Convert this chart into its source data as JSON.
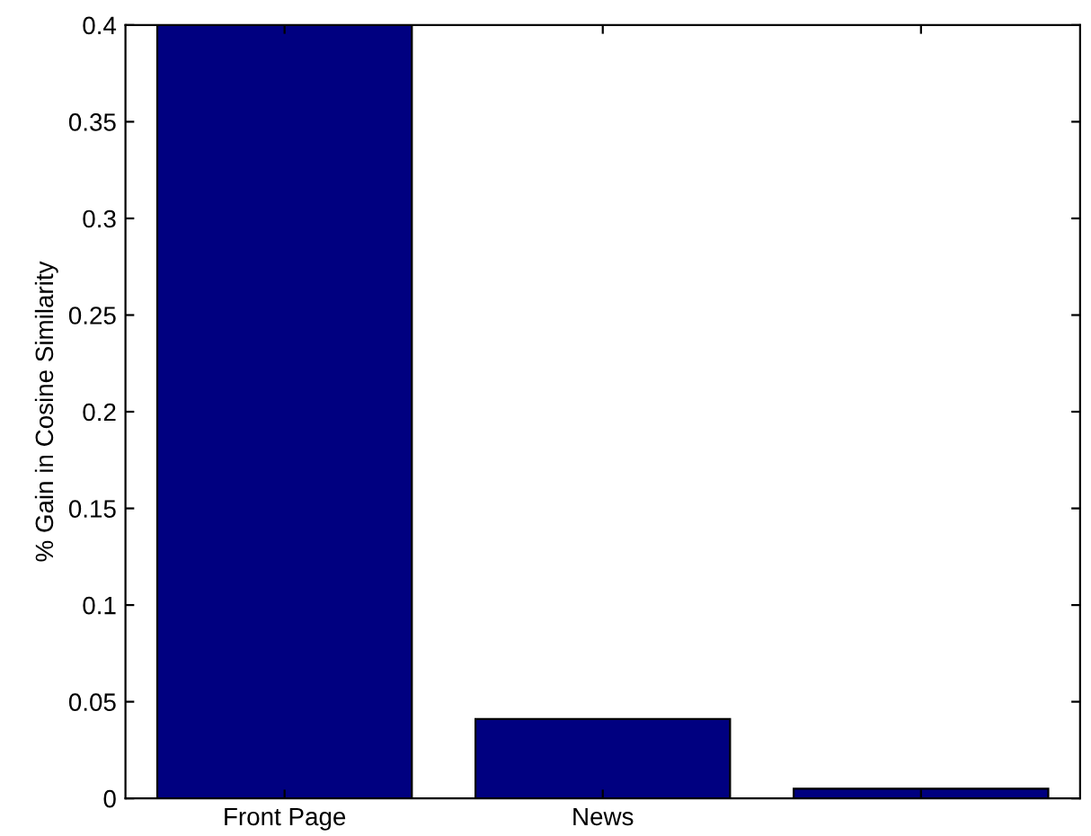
{
  "chart_data": {
    "type": "bar",
    "ylabel": "% Gain in Cosine Similarity",
    "categories": [
      "Front Page",
      "News",
      null
    ],
    "values": [
      0.4,
      0.041,
      0.005
    ],
    "color": "#000080",
    "ylim": [
      0,
      0.4
    ],
    "yticks": [
      0,
      0.05,
      0.1,
      0.15,
      0.2,
      0.25,
      0.3,
      0.35,
      0.4
    ],
    "grid": false
  }
}
